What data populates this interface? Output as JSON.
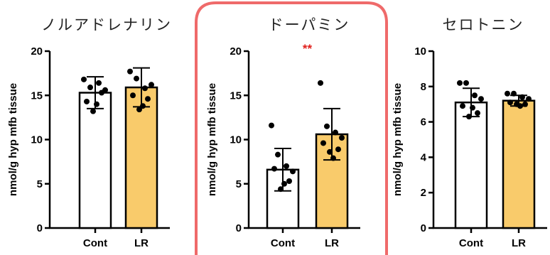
{
  "colors": {
    "cont": "#ffffff",
    "lr": "#f9cb6b",
    "highlight": "#ef6a6a",
    "significance": "#e0201c"
  },
  "chart_data": [
    {
      "type": "bar",
      "title": "ノルアドレナリン",
      "ylabel": "nmol/g hyp mfb tissue",
      "categories": [
        "Cont",
        "LR"
      ],
      "ylim": [
        0,
        20
      ],
      "yticks": [
        0,
        5,
        10,
        15,
        20
      ],
      "values": [
        15.3,
        15.9
      ],
      "errors": [
        1.8,
        2.2
      ],
      "points": [
        [
          16.8,
          15.9,
          16.4,
          15.6,
          14.3,
          15.3,
          13.2,
          14.0
        ],
        [
          17.7,
          16.9,
          15.8,
          16.2,
          15.0,
          14.6,
          13.4,
          13.8
        ]
      ],
      "significance": "",
      "highlighted": false
    },
    {
      "type": "bar",
      "title": "ドーパミン",
      "ylabel": "nmol/g hyp mfb tissue",
      "categories": [
        "Cont",
        "LR"
      ],
      "ylim": [
        0,
        20
      ],
      "yticks": [
        0,
        5,
        10,
        15,
        20
      ],
      "values": [
        6.6,
        10.6
      ],
      "errors": [
        2.4,
        2.9
      ],
      "points": [
        [
          11.6,
          8.3,
          7.0,
          6.4,
          6.7,
          5.3,
          4.4,
          5.0
        ],
        [
          16.4,
          11.5,
          10.8,
          10.2,
          9.6,
          8.9,
          8.6,
          7.9
        ]
      ],
      "significance": "**",
      "highlighted": true
    },
    {
      "type": "bar",
      "title": "セロトニン",
      "ylabel": "nmol/g hyp mfb tissue",
      "categories": [
        "Cont",
        "LR"
      ],
      "ylim": [
        0,
        10
      ],
      "yticks": [
        0,
        2,
        4,
        6,
        8,
        10
      ],
      "values": [
        7.1,
        7.2
      ],
      "errors": [
        0.8,
        0.3
      ],
      "points": [
        [
          8.2,
          8.2,
          7.5,
          7.3,
          6.9,
          6.5,
          6.3,
          6.8
        ],
        [
          7.6,
          7.6,
          7.4,
          7.3,
          7.1,
          7.0,
          7.0,
          6.9
        ]
      ],
      "significance": "",
      "highlighted": false
    }
  ]
}
